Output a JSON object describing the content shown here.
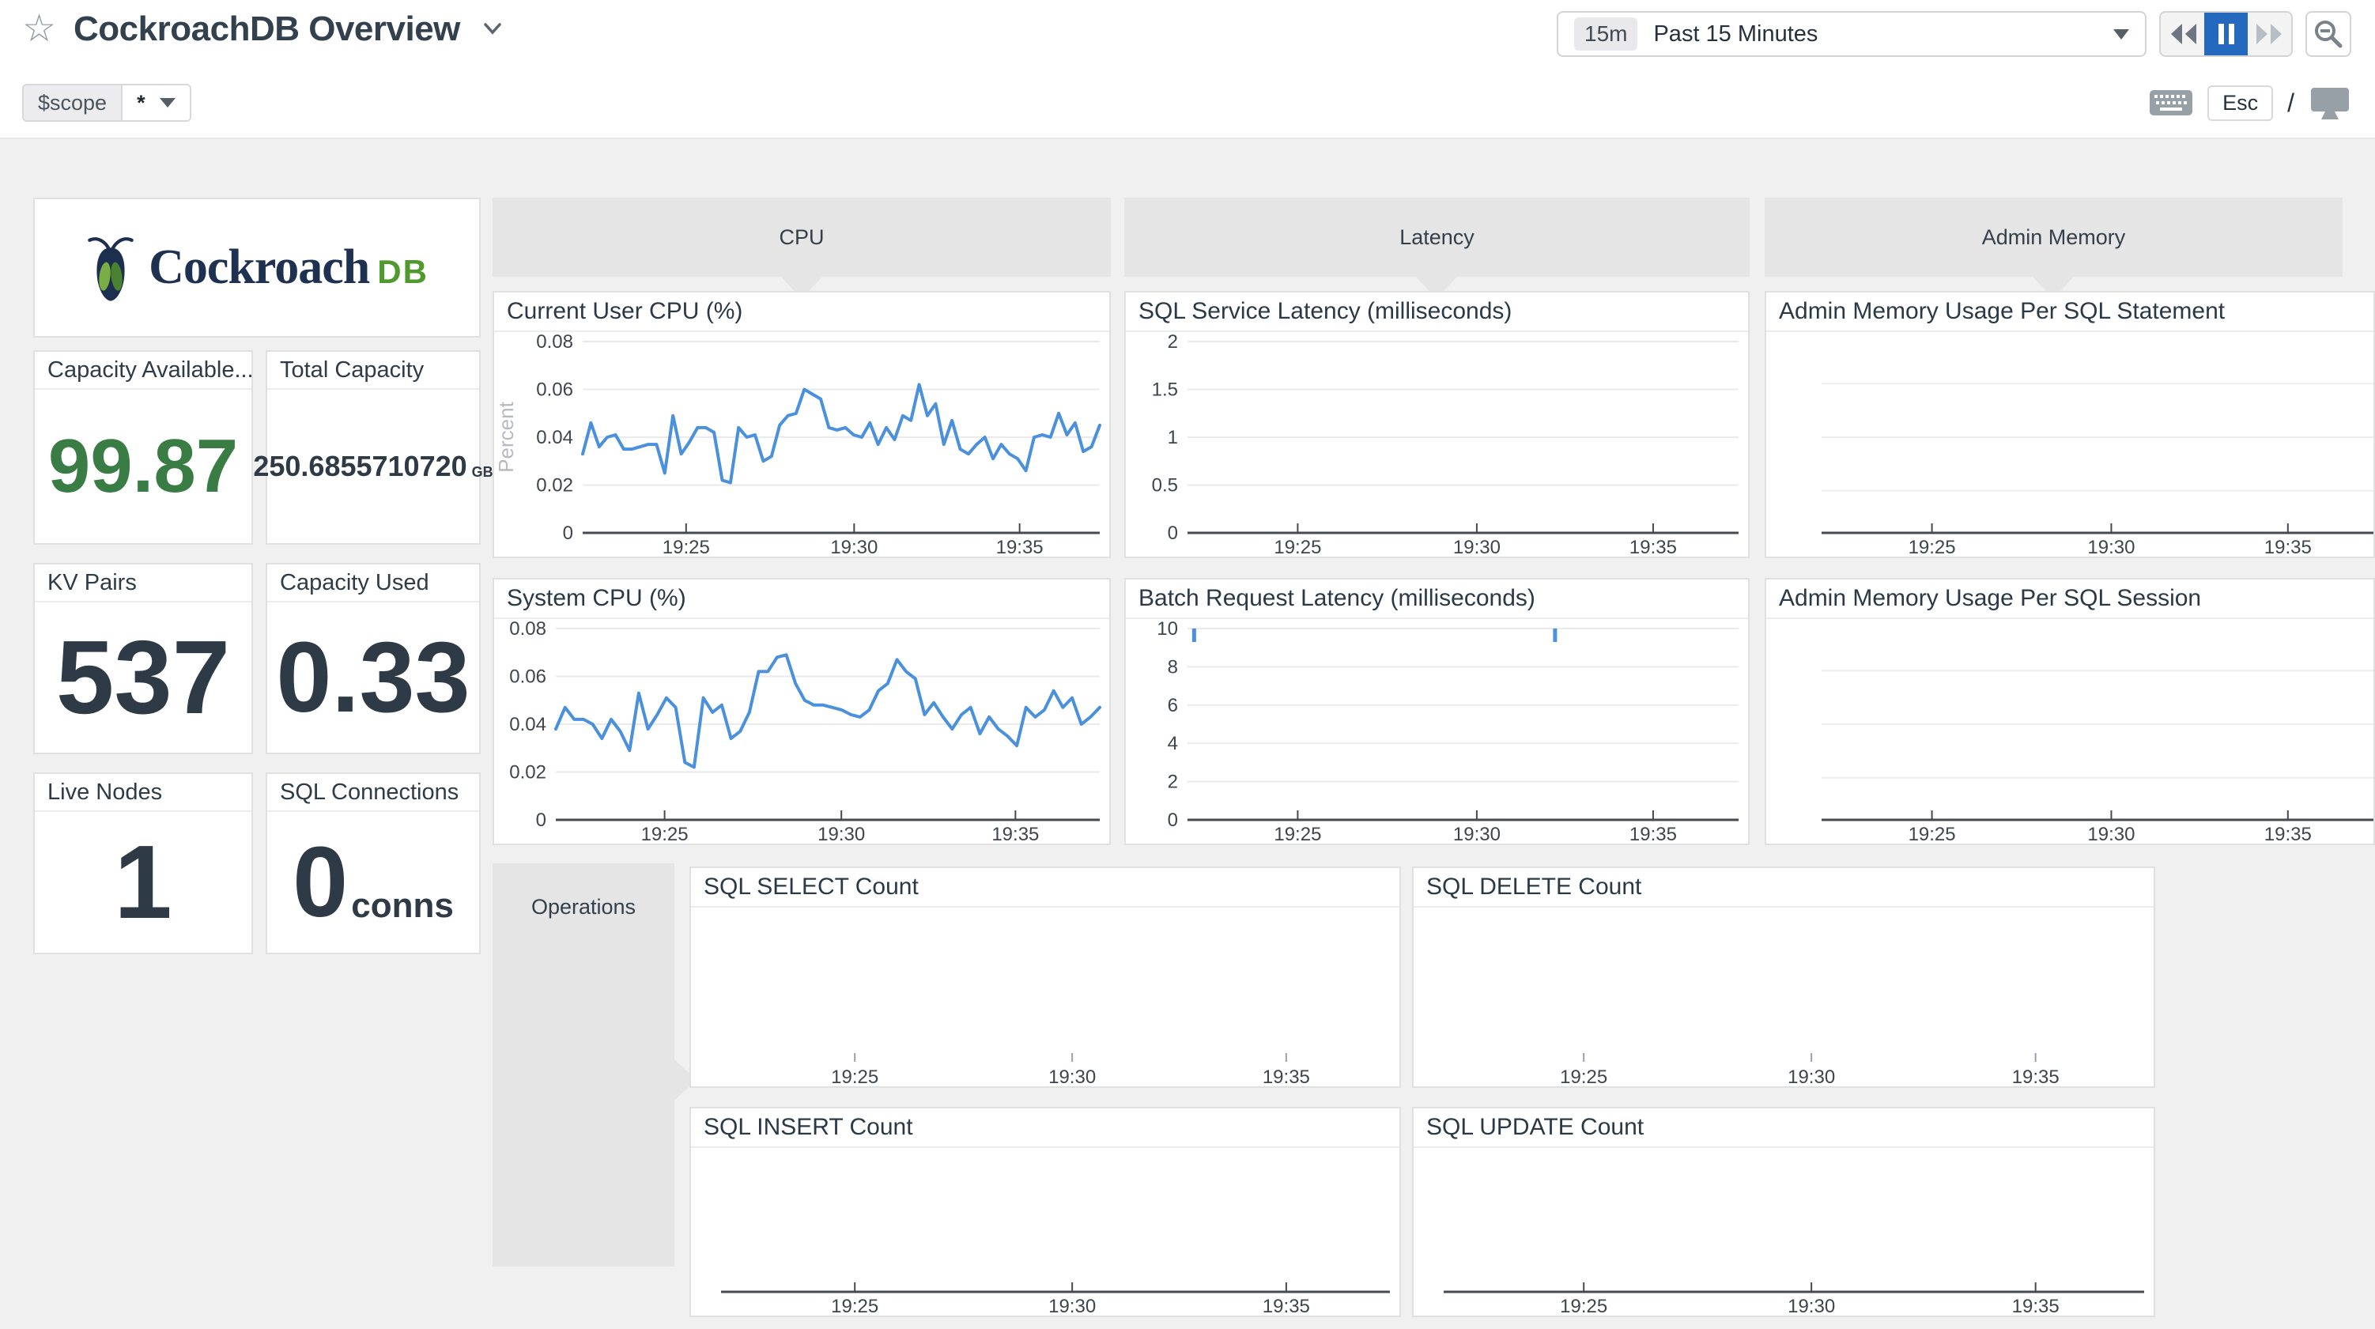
{
  "header": {
    "title": "CockroachDB Overview",
    "time": {
      "badge": "15m",
      "label": "Past 15 Minutes"
    },
    "esc": "Esc",
    "slash": "/"
  },
  "scope": {
    "key": "$scope",
    "value": "*"
  },
  "logo": {
    "word": "Cockroach",
    "suffix": "DB"
  },
  "groups": {
    "cpu": "CPU",
    "latency": "Latency",
    "admin_memory": "Admin Memory",
    "operations": "Operations"
  },
  "metric_cards": [
    {
      "title": "Capacity Available...",
      "value": "99.87",
      "unit": ""
    },
    {
      "title": "Total Capacity",
      "value": "250.6855710720",
      "unit": "GB"
    },
    {
      "title": "KV Pairs",
      "value": "537",
      "unit": ""
    },
    {
      "title": "Capacity Used",
      "value": "0.33",
      "unit": ""
    },
    {
      "title": "Live Nodes",
      "value": "1",
      "unit": ""
    },
    {
      "title": "SQL Connections",
      "value": "0",
      "unit": "conns"
    }
  ],
  "colors": {
    "line_blue": "#4a90dc",
    "active_blue": "#2569bf",
    "metric_green": "#3a7d44",
    "logo_navy": "#1e3150",
    "logo_green": "#4f9a2e"
  },
  "charts": [
    {
      "id": "current-user-cpu",
      "title": "Current User CPU (%)",
      "type": "line",
      "ylabel": "Percent",
      "ymax": 0.08,
      "yticks": [
        "0",
        "0.02",
        "0.04",
        "0.06",
        "0.08"
      ],
      "xticks": [
        "19:25",
        "19:30",
        "19:35"
      ],
      "axis": true,
      "values": [
        0.033,
        0.046,
        0.036,
        0.04,
        0.041,
        0.035,
        0.035,
        0.036,
        0.037,
        0.037,
        0.025,
        0.049,
        0.033,
        0.038,
        0.044,
        0.044,
        0.042,
        0.022,
        0.021,
        0.044,
        0.04,
        0.041,
        0.03,
        0.032,
        0.045,
        0.049,
        0.05,
        0.06,
        0.058,
        0.056,
        0.044,
        0.043,
        0.044,
        0.041,
        0.04,
        0.046,
        0.037,
        0.044,
        0.039,
        0.049,
        0.047,
        0.062,
        0.049,
        0.054,
        0.037,
        0.047,
        0.035,
        0.033,
        0.037,
        0.04,
        0.031,
        0.037,
        0.033,
        0.031,
        0.026,
        0.04,
        0.041,
        0.04,
        0.05,
        0.041,
        0.046,
        0.034,
        0.036,
        0.045
      ]
    },
    {
      "id": "sql-service-latency",
      "title": "SQL Service Latency (milliseconds)",
      "type": "line",
      "ymax": 2,
      "yticks": [
        "0",
        "0.5",
        "1",
        "1.5",
        "2"
      ],
      "xticks": [
        "19:25",
        "19:30",
        "19:35"
      ],
      "axis": true,
      "values": []
    },
    {
      "id": "admin-memory-statement",
      "title": "Admin Memory Usage Per SQL Statement",
      "type": "line",
      "yticks": [],
      "unlabeled_gridlines": 3,
      "xticks": [
        "19:25",
        "19:30",
        "19:35"
      ],
      "axis": true,
      "values": []
    },
    {
      "id": "system-cpu",
      "title": "System CPU (%)",
      "type": "line",
      "ymax": 0.08,
      "yticks": [
        "0",
        "0.02",
        "0.04",
        "0.06",
        "0.08"
      ],
      "xticks": [
        "19:25",
        "19:30",
        "19:35"
      ],
      "axis": true,
      "values": [
        0.038,
        0.047,
        0.042,
        0.042,
        0.04,
        0.034,
        0.042,
        0.037,
        0.029,
        0.053,
        0.038,
        0.044,
        0.051,
        0.047,
        0.024,
        0.022,
        0.051,
        0.045,
        0.048,
        0.034,
        0.037,
        0.045,
        0.062,
        0.062,
        0.068,
        0.069,
        0.057,
        0.05,
        0.048,
        0.048,
        0.047,
        0.046,
        0.044,
        0.043,
        0.046,
        0.054,
        0.057,
        0.067,
        0.062,
        0.059,
        0.044,
        0.049,
        0.043,
        0.038,
        0.044,
        0.047,
        0.036,
        0.043,
        0.038,
        0.035,
        0.031,
        0.047,
        0.043,
        0.046,
        0.054,
        0.047,
        0.051,
        0.04,
        0.043,
        0.047
      ]
    },
    {
      "id": "batch-request-latency",
      "title": "Batch Request Latency (milliseconds)",
      "type": "line",
      "ymax": 10,
      "yticks": [
        "0",
        "2",
        "4",
        "6",
        "8",
        "10"
      ],
      "xticks": [
        "19:25",
        "19:30",
        "19:35"
      ],
      "axis": true,
      "values": [],
      "spikes": [
        0.012,
        0.667
      ],
      "spike_value": 10
    },
    {
      "id": "admin-memory-session",
      "title": "Admin Memory Usage Per SQL Session",
      "type": "line",
      "yticks": [],
      "unlabeled_gridlines": 3,
      "xticks": [
        "19:25",
        "19:30",
        "19:35"
      ],
      "axis": true,
      "values": []
    },
    {
      "id": "sql-select-count",
      "title": "SQL SELECT Count",
      "type": "line",
      "yticks": [],
      "xticks": [
        "19:25",
        "19:30",
        "19:35"
      ],
      "axis": false,
      "values": []
    },
    {
      "id": "sql-delete-count",
      "title": "SQL DELETE Count",
      "type": "line",
      "yticks": [],
      "xticks": [
        "19:25",
        "19:30",
        "19:35"
      ],
      "axis": false,
      "values": []
    },
    {
      "id": "sql-insert-count",
      "title": "SQL INSERT Count",
      "type": "line",
      "yticks": [],
      "xticks": [
        "19:25",
        "19:30",
        "19:35"
      ],
      "axis": true,
      "values": []
    },
    {
      "id": "sql-update-count",
      "title": "SQL UPDATE Count",
      "type": "line",
      "yticks": [],
      "xticks": [
        "19:25",
        "19:30",
        "19:35"
      ],
      "axis": true,
      "values": []
    }
  ]
}
